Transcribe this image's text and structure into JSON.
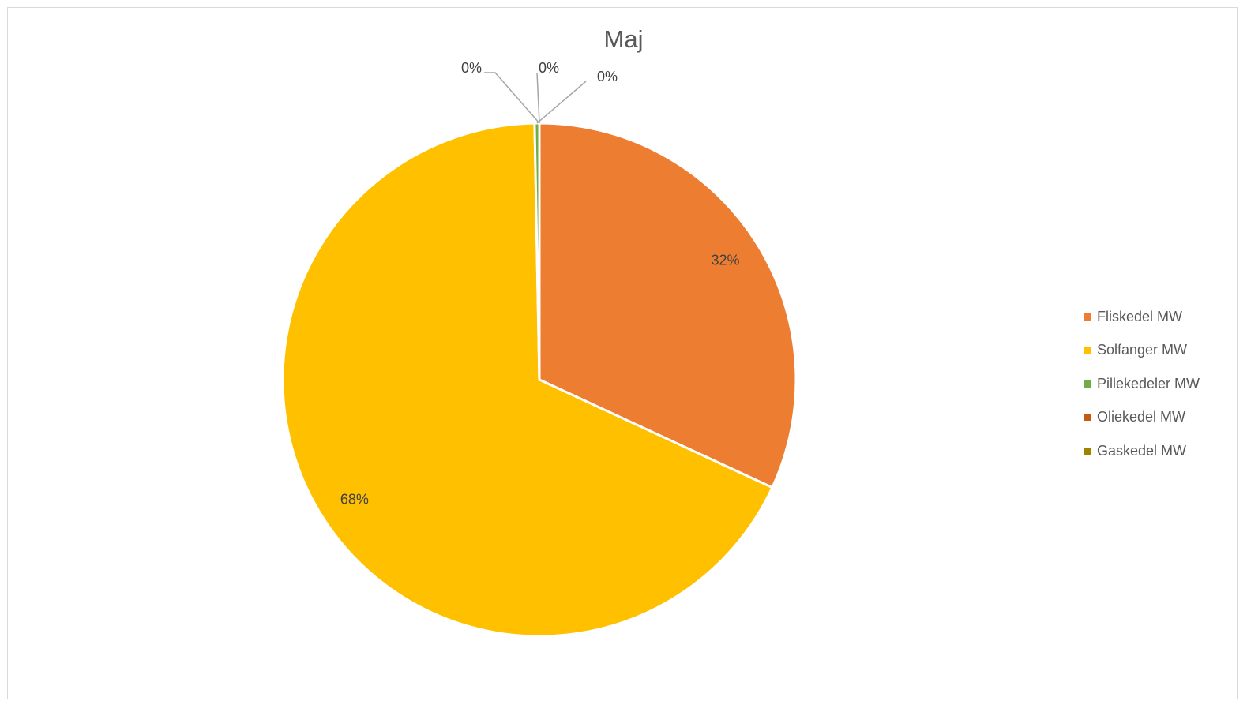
{
  "chart_data": {
    "type": "pie",
    "title": "Maj",
    "categories": [
      "Fliskedel MW",
      "Solfanger MW",
      "Pillekedeler MW",
      "Oliekedel MW",
      "Gaskedel MW"
    ],
    "values": [
      32,
      68,
      0.3,
      0,
      0
    ],
    "labels": [
      "32%",
      "68%",
      "0%",
      "0%",
      "0%"
    ],
    "colors": [
      "#ED7D31",
      "#FFC000",
      "#70AD47",
      "#C55A11",
      "#9E8300"
    ],
    "legend_position": "right"
  }
}
